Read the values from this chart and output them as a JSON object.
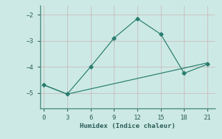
{
  "line1_x": [
    0,
    3,
    6,
    9,
    12,
    15,
    18,
    21
  ],
  "line1_y": [
    -4.7,
    -5.05,
    -4.0,
    -2.9,
    -2.15,
    -2.75,
    -4.25,
    -3.9
  ],
  "line2_x": [
    0,
    3,
    21
  ],
  "line2_y": [
    -4.7,
    -5.05,
    -3.85
  ],
  "xlabel": "Humidex (Indice chaleur)",
  "xticks": [
    0,
    3,
    6,
    9,
    12,
    15,
    18,
    21
  ],
  "yticks": [
    -5,
    -4,
    -3,
    -2
  ],
  "ytick_labels": [
    "−5",
    "−4",
    "−3",
    "−2"
  ],
  "ylim": [
    -5.6,
    -1.65
  ],
  "xlim": [
    -0.5,
    22.0
  ],
  "line_color": "#2a7d6e",
  "bg_color": "#cce9e5",
  "grid_color": "#afd4cf",
  "font_color": "#2a5c56",
  "spine_color": "#4a8c7e"
}
